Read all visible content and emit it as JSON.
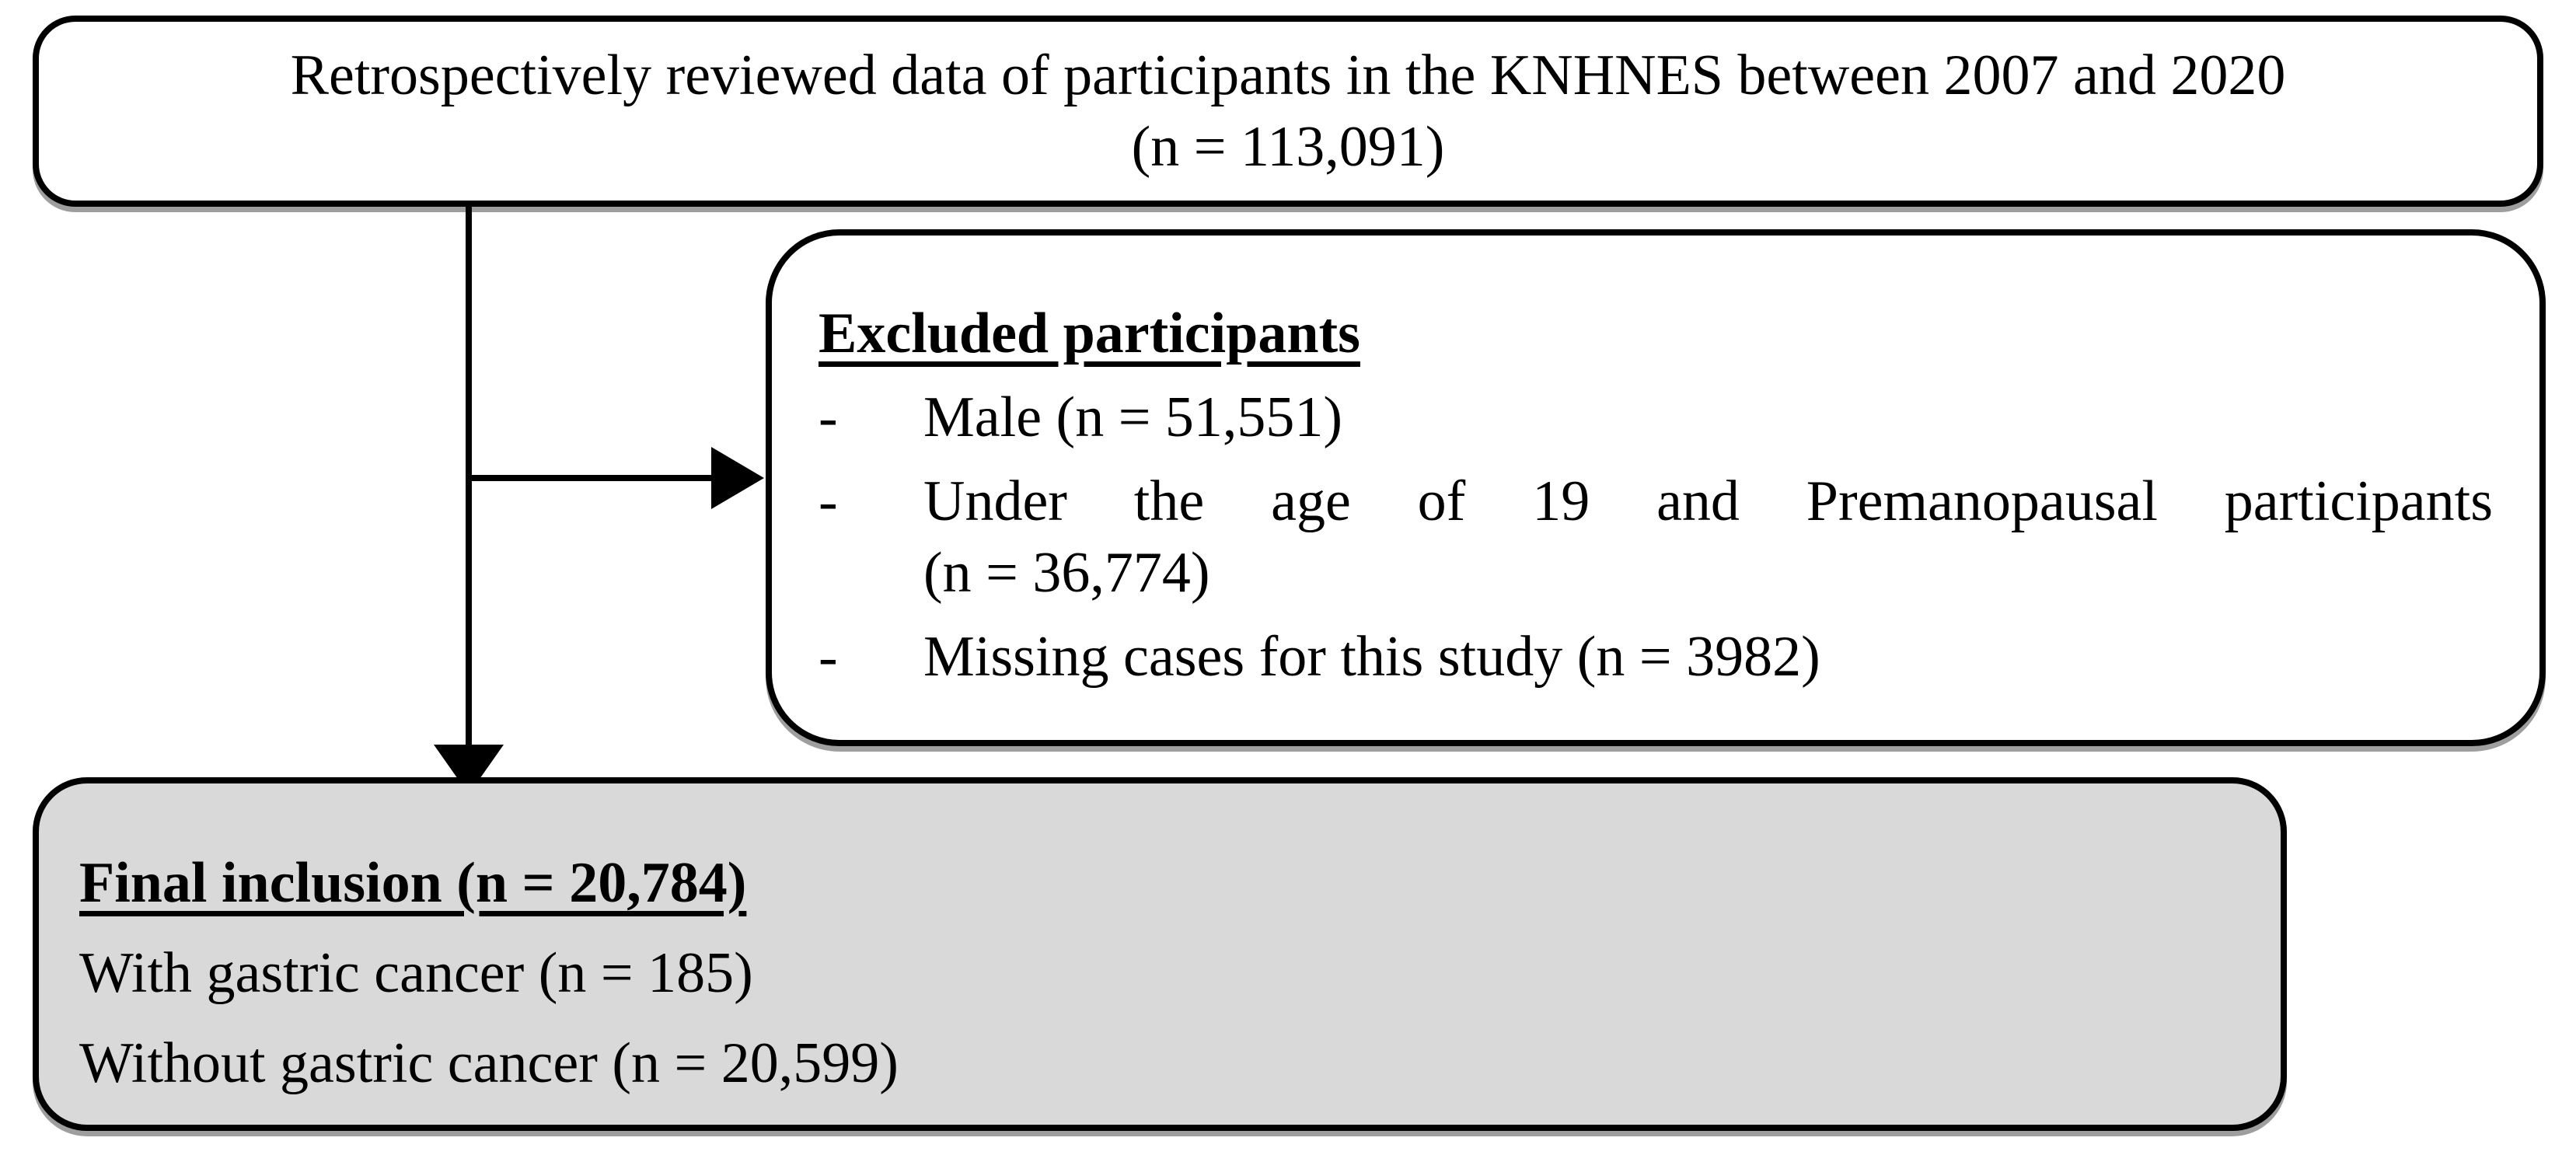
{
  "diagram": {
    "source_box": {
      "line1": "Retrospectively reviewed data of participants in the KNHNES between 2007 and 2020",
      "line2": "(n = 113,091)"
    },
    "excluded_box": {
      "title": "Excluded participants",
      "items": [
        {
          "bullet": "-",
          "lines": [
            "Male (n = 51,551)"
          ]
        },
        {
          "bullet": "-",
          "lines": [
            "Under the age of 19 and Premanopausal participants",
            "(n = 36,774)"
          ]
        },
        {
          "bullet": "-",
          "lines": [
            "Missing cases for this study (n = 3982)"
          ]
        }
      ]
    },
    "final_box": {
      "title": "Final inclusion (n = 20,784)",
      "line2": "With gastric cancer (n = 185)",
      "line3": "Without gastric cancer (n = 20,599)"
    },
    "colors": {
      "final_box_fill": "#d9d9d9",
      "border": "#000000",
      "shadow": "#9e9e9e"
    }
  }
}
